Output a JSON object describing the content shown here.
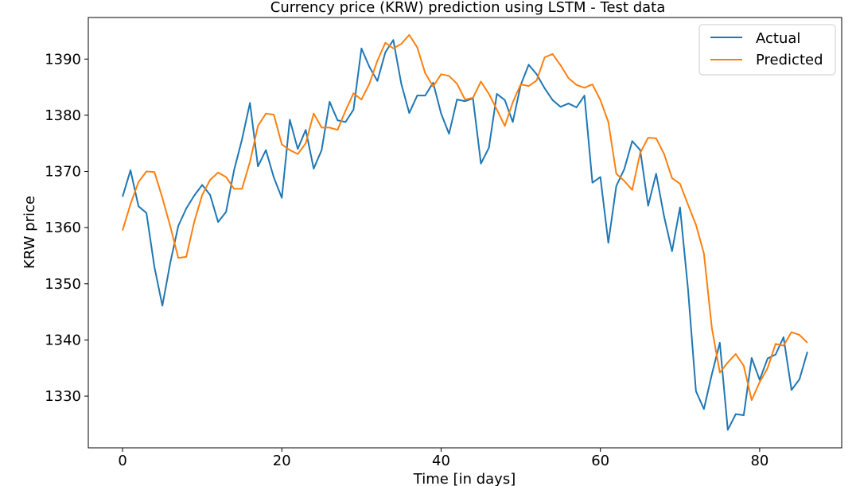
{
  "chart_data": {
    "type": "line",
    "title": "Currency price (KRW) prediction using LSTM - Test data",
    "xlabel": "Time [in days]",
    "ylabel": "KRW price",
    "xlim": [
      -4.3,
      90.3
    ],
    "ylim": [
      1320.8,
      1397.4
    ],
    "xticks": [
      0,
      20,
      40,
      60,
      80
    ],
    "xtick_labels": [
      "0",
      "20",
      "40",
      "60",
      "80"
    ],
    "yticks": [
      1330,
      1340,
      1350,
      1360,
      1370,
      1380,
      1390
    ],
    "ytick_labels": [
      "1330",
      "1340",
      "1350",
      "1360",
      "1370",
      "1380",
      "1390"
    ],
    "grid": false,
    "legend_position": "top-right",
    "series": [
      {
        "name": "Actual",
        "color": "#1f77b4",
        "values": [
          1365.5,
          1370.2,
          1363.8,
          1362.6,
          1353.0,
          1346.1,
          1353.8,
          1360.3,
          1363.4,
          1365.7,
          1367.6,
          1365.8,
          1361.0,
          1362.8,
          1370.2,
          1375.7,
          1382.2,
          1370.9,
          1373.8,
          1368.9,
          1365.3,
          1379.2,
          1374.0,
          1377.4,
          1370.5,
          1373.8,
          1382.4,
          1379.1,
          1378.8,
          1381.0,
          1391.9,
          1388.6,
          1386.1,
          1391.2,
          1393.4,
          1385.6,
          1380.4,
          1383.5,
          1383.5,
          1385.8,
          1380.3,
          1376.7,
          1382.8,
          1382.5,
          1383.0,
          1371.4,
          1374.2,
          1383.8,
          1382.7,
          1378.8,
          1385.4,
          1389.0,
          1387.3,
          1384.8,
          1382.7,
          1381.5,
          1382.1,
          1381.4,
          1383.5,
          1368.0,
          1369.0,
          1357.3,
          1367.4,
          1370.4,
          1375.4,
          1373.8,
          1363.9,
          1369.6,
          1362.0,
          1355.8,
          1363.6,
          1349.1,
          1330.9,
          1327.7,
          1333.9,
          1339.5,
          1324.0,
          1326.8,
          1326.6,
          1336.8,
          1332.9,
          1336.7,
          1337.4,
          1340.5,
          1331.1,
          1333.0,
          1337.9
        ]
      },
      {
        "name": "Predicted",
        "color": "#ff7f0e",
        "values": [
          1359.5,
          1364.2,
          1368.1,
          1370.0,
          1369.9,
          1365.3,
          1360.2,
          1354.6,
          1354.8,
          1361.0,
          1365.8,
          1368.5,
          1369.8,
          1369.0,
          1366.9,
          1366.9,
          1371.7,
          1378.1,
          1380.3,
          1380.1,
          1374.8,
          1373.8,
          1373.1,
          1375.0,
          1380.3,
          1377.8,
          1377.8,
          1377.4,
          1380.8,
          1383.9,
          1382.8,
          1385.6,
          1389.7,
          1392.9,
          1391.9,
          1392.7,
          1394.3,
          1392.1,
          1387.5,
          1385.1,
          1387.3,
          1387.0,
          1385.6,
          1382.8,
          1383.1,
          1386.0,
          1383.8,
          1381.0,
          1378.1,
          1382.3,
          1385.5,
          1385.2,
          1386.2,
          1390.3,
          1390.9,
          1388.9,
          1386.6,
          1385.4,
          1384.9,
          1385.5,
          1382.7,
          1378.8,
          1369.6,
          1368.3,
          1366.7,
          1373.3,
          1376.0,
          1375.9,
          1373.1,
          1368.8,
          1367.8,
          1364.1,
          1360.5,
          1355.4,
          1342.1,
          1334.2,
          1336.0,
          1337.5,
          1335.4,
          1329.3,
          1332.5,
          1335.0,
          1339.3,
          1339.0,
          1341.4,
          1340.9,
          1339.5
        ]
      }
    ]
  }
}
